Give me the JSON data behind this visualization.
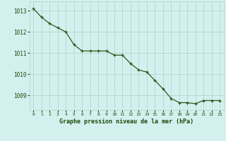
{
  "x": [
    0,
    1,
    2,
    3,
    4,
    5,
    6,
    7,
    8,
    9,
    10,
    11,
    12,
    13,
    14,
    15,
    16,
    17,
    18,
    19,
    20,
    21,
    22,
    23
  ],
  "y": [
    1013.1,
    1012.7,
    1012.4,
    1012.2,
    1012.0,
    1011.4,
    1011.1,
    1011.1,
    1011.1,
    1011.1,
    1010.9,
    1010.9,
    1010.5,
    1010.2,
    1010.1,
    1009.7,
    1009.3,
    1008.85,
    1008.65,
    1008.65,
    1008.6,
    1008.75,
    1008.75,
    1008.75
  ],
  "line_color": "#2d5a1b",
  "marker_color": "#2d5a1b",
  "bg_color": "#d4f0ee",
  "grid_color": "#b0d8cc",
  "xlabel": "Graphe pression niveau de la mer (hPa)",
  "xlabel_color": "#1a4a0a",
  "tick_label_color": "#1a4a0a",
  "ylim": [
    1008.3,
    1013.45
  ],
  "yticks": [
    1009,
    1010,
    1011,
    1012,
    1013
  ],
  "xticks": [
    0,
    1,
    2,
    3,
    4,
    5,
    6,
    7,
    8,
    9,
    10,
    11,
    12,
    13,
    14,
    15,
    16,
    17,
    18,
    19,
    20,
    21,
    22,
    23
  ]
}
